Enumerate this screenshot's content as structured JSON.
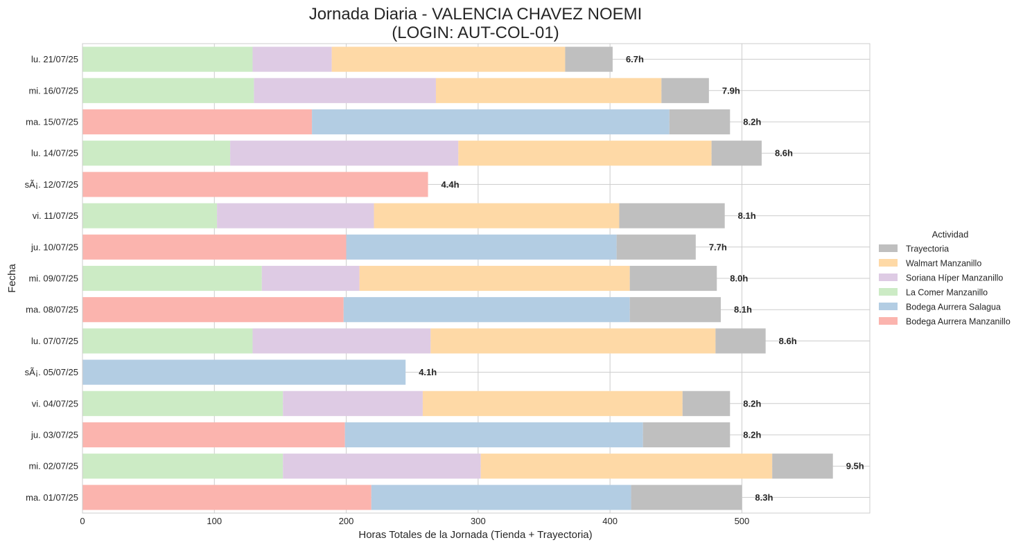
{
  "chart_data": {
    "type": "bar",
    "orientation": "horizontal",
    "stacked": true,
    "title_line1": "Jornada Diaria - VALENCIA CHAVEZ NOEMI",
    "title_line2": "(LOGIN: AUT-COL-01)",
    "xlabel": "Horas Totales de la Jornada (Tienda + Trayectoria)",
    "ylabel": "Fecha",
    "xlim": [
      0,
      597
    ],
    "xticks": [
      0,
      100,
      200,
      300,
      400,
      500
    ],
    "grid": true,
    "legend_position": "right",
    "legend_title": "Actividad",
    "categories": [
      "lu. 21/07/25",
      "mi. 16/07/25",
      "ma. 15/07/25",
      "lu. 14/07/25",
      "sÃ¡. 12/07/25",
      "vi. 11/07/25",
      "ju. 10/07/25",
      "mi. 09/07/25",
      "ma. 08/07/25",
      "lu. 07/07/25",
      "sÃ¡. 05/07/25",
      "vi. 04/07/25",
      "ju. 03/07/25",
      "mi. 02/07/25",
      "ma. 01/07/25"
    ],
    "series": [
      {
        "name": "Bodega Aurrera Manzanillo",
        "color": "#fbb4ae",
        "values": [
          0,
          0,
          174,
          0,
          262,
          0,
          200,
          0,
          198,
          0,
          0,
          0,
          199,
          0,
          219
        ]
      },
      {
        "name": "Bodega Aurrera Salagua",
        "color": "#b3cde3",
        "values": [
          0,
          0,
          271,
          0,
          0,
          0,
          205,
          0,
          217,
          0,
          245,
          0,
          226,
          0,
          197
        ]
      },
      {
        "name": "La Comer Manzanillo",
        "color": "#ccebc5",
        "values": [
          129,
          130,
          0,
          112,
          0,
          102,
          0,
          136,
          0,
          129,
          0,
          152,
          0,
          152,
          0
        ]
      },
      {
        "name": "Soriana Híper Manzanillo",
        "color": "#decbe4",
        "values": [
          60,
          138,
          0,
          173,
          0,
          119,
          0,
          74,
          0,
          135,
          0,
          106,
          0,
          150,
          0
        ]
      },
      {
        "name": "Walmart Manzanillo",
        "color": "#fed9a6",
        "values": [
          177,
          171,
          0,
          192,
          0,
          186,
          0,
          205,
          0,
          216,
          0,
          197,
          0,
          221,
          0
        ]
      },
      {
        "name": "Trayectoria",
        "color": "#bfbfbf",
        "values": [
          36,
          36,
          46,
          38,
          0,
          80,
          60,
          66,
          69,
          38,
          0,
          36,
          66,
          46,
          84
        ]
      }
    ],
    "totals": [
      "6.7h",
      "7.9h",
      "8.2h",
      "8.6h",
      "4.4h",
      "8.1h",
      "7.7h",
      "8.0h",
      "8.1h",
      "8.6h",
      "4.1h",
      "8.2h",
      "8.2h",
      "9.5h",
      "8.3h"
    ],
    "legend_order": [
      "Trayectoria",
      "Walmart Manzanillo",
      "Soriana Híper Manzanillo",
      "La Comer Manzanillo",
      "Bodega Aurrera Salagua",
      "Bodega Aurrera Manzanillo"
    ]
  }
}
